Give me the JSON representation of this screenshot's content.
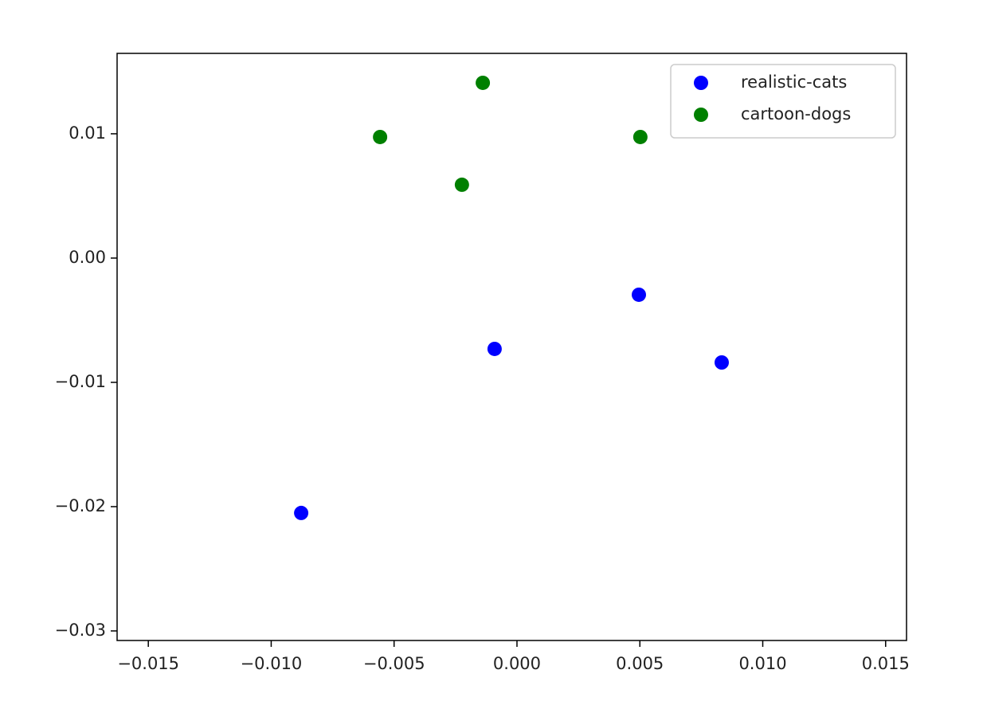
{
  "chart_data": {
    "type": "scatter",
    "series": [
      {
        "name": "realistic-cats",
        "color": "#0000ff",
        "x": [
          -0.00878,
          -0.00091,
          0.00496,
          0.00833
        ],
        "values": [
          -0.02051,
          -0.00731,
          -0.00295,
          -0.0084
        ]
      },
      {
        "name": "cartoon-dogs",
        "color": "#008000",
        "x": [
          -0.00557,
          -0.00139,
          -0.00224,
          0.00502
        ],
        "values": [
          0.00974,
          0.0141,
          0.0059,
          0.00974
        ]
      }
    ],
    "xlim": [
      -0.01627,
      0.01585
    ],
    "ylim": [
      -0.03077,
      0.01647
    ],
    "xticks": [
      {
        "value": -0.015,
        "label": "−0.015"
      },
      {
        "value": -0.01,
        "label": "−0.010"
      },
      {
        "value": -0.005,
        "label": "−0.005"
      },
      {
        "value": 0,
        "label": "0.000"
      },
      0.005,
      {
        "value": 0.01,
        "label": "0.010"
      },
      0.015
    ],
    "yticks": [
      {
        "value": -0.03,
        "label": "−0.03"
      },
      {
        "value": -0.02,
        "label": "−0.02"
      },
      {
        "value": -0.01,
        "label": "−0.01"
      },
      {
        "value": 0,
        "label": "0.00"
      },
      0.01
    ],
    "legend": "upper right"
  }
}
